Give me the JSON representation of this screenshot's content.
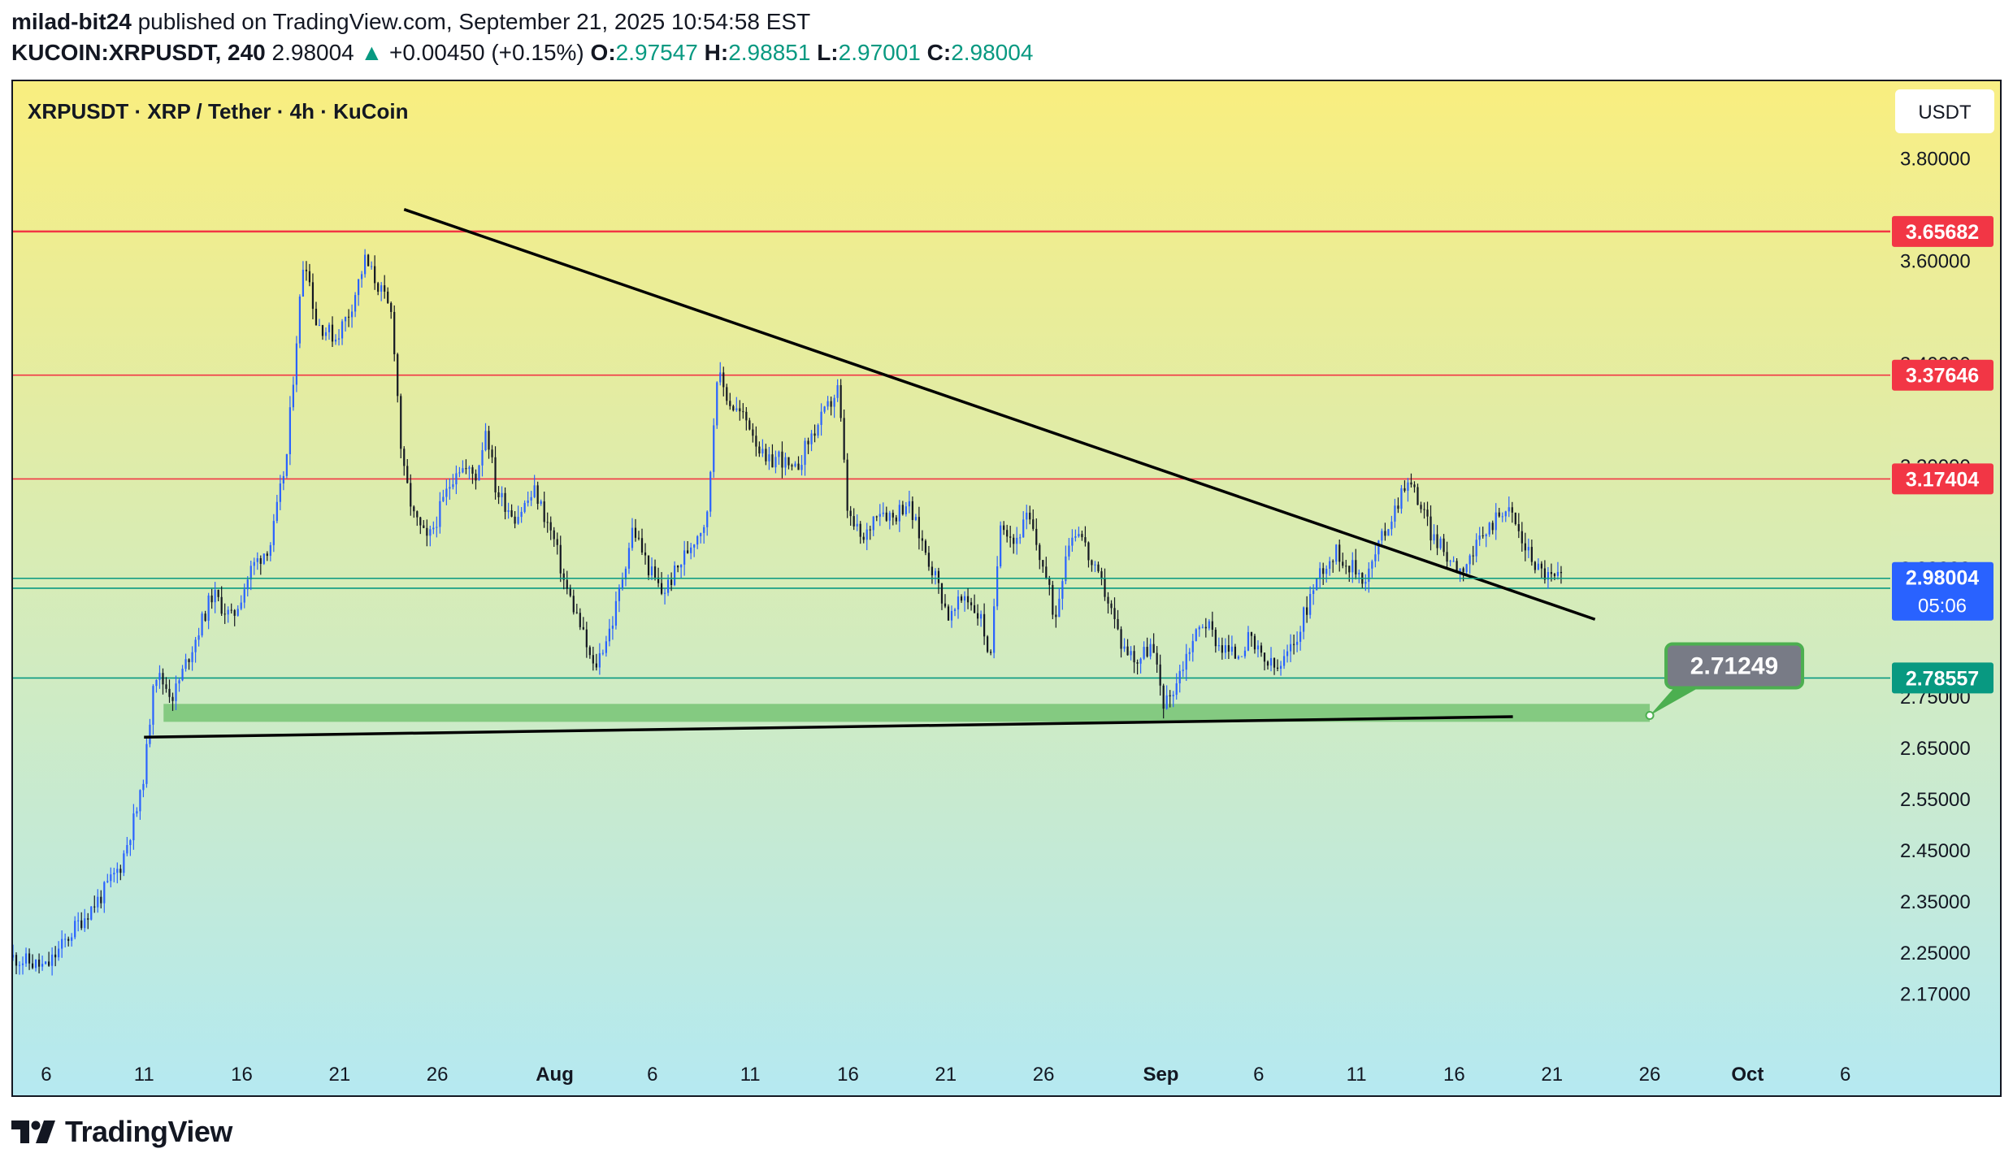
{
  "header": {
    "publisher": "milad-bit24",
    "published_text": " published on TradingView.com, September 21, 2025 10:54:58 EST",
    "symbol": "KUCOIN:XRPUSDT, 240",
    "last": "2.98004",
    "up_arrow": "▲",
    "change": "+0.00450 (+0.15%)",
    "o_label": "O:",
    "o_value": "2.97547",
    "h_label": "H:",
    "h_value": "2.98851",
    "l_label": "L:",
    "l_value": "2.97001",
    "c_label": "C:",
    "c_value": "2.98004"
  },
  "footer": {
    "brand": "TradingView",
    "logo_icon": "tradingview-logo-icon"
  },
  "colors": {
    "bg_top": "#f9ee7f",
    "bg_bottom": "#b3e9f1",
    "candle_up": "#2962ff",
    "candle_down": "#131722",
    "res_line": "#f23645",
    "sup_line": "#089981",
    "zone": "#5cb85c",
    "price_badge": "#2962ff",
    "sup_badge": "#089981",
    "callout_bg": "#787b86",
    "callout_border": "#4caf50"
  },
  "chart_data": {
    "type": "candlestick",
    "title": "XRPUSDT · XRP / Tether · 4h · KuCoin",
    "currency": "USDT",
    "timeframe": "4h",
    "x_tick_labels": [
      {
        "label": "6",
        "day": 0
      },
      {
        "label": "11",
        "day": 5
      },
      {
        "label": "16",
        "day": 10
      },
      {
        "label": "21",
        "day": 15
      },
      {
        "label": "26",
        "day": 20
      },
      {
        "label": "Aug",
        "day": 26,
        "bold": true
      },
      {
        "label": "6",
        "day": 31
      },
      {
        "label": "11",
        "day": 36
      },
      {
        "label": "16",
        "day": 41
      },
      {
        "label": "21",
        "day": 46
      },
      {
        "label": "26",
        "day": 51
      },
      {
        "label": "Sep",
        "day": 57,
        "bold": true
      },
      {
        "label": "6",
        "day": 62
      },
      {
        "label": "11",
        "day": 67
      },
      {
        "label": "16",
        "day": 72
      },
      {
        "label": "21",
        "day": 77
      },
      {
        "label": "26",
        "day": 82
      },
      {
        "label": "Oct",
        "day": 87,
        "bold": true
      },
      {
        "label": "6",
        "day": 92
      }
    ],
    "y_tick_labels": [
      "3.80000",
      "3.60000",
      "3.40000",
      "3.20000",
      "3.00000",
      "2.75000",
      "2.65000",
      "2.55000",
      "2.45000",
      "2.35000",
      "2.25000",
      "2.17000"
    ],
    "y_tick_values": [
      3.8,
      3.6,
      3.4,
      3.2,
      3.0,
      2.75,
      2.65,
      2.55,
      2.45,
      2.35,
      2.25,
      2.17
    ],
    "ylim": [
      2.06,
      3.95
    ],
    "xlim_days": [
      -1.7,
      94.3
    ],
    "price_path": [
      [
        -1.7,
        2.24
      ],
      [
        0.0,
        2.22
      ],
      [
        1.5,
        2.3
      ],
      [
        2.8,
        2.36
      ],
      [
        3.8,
        2.42
      ],
      [
        4.8,
        2.55
      ],
      [
        5.2,
        2.66
      ],
      [
        5.5,
        2.8
      ],
      [
        6.5,
        2.75
      ],
      [
        7.5,
        2.85
      ],
      [
        8.5,
        2.95
      ],
      [
        9.5,
        2.9
      ],
      [
        10.5,
        3.0
      ],
      [
        11.5,
        3.05
      ],
      [
        12.3,
        3.22
      ],
      [
        12.8,
        3.45
      ],
      [
        13.2,
        3.62
      ],
      [
        13.8,
        3.48
      ],
      [
        14.8,
        3.45
      ],
      [
        15.5,
        3.5
      ],
      [
        16.3,
        3.6
      ],
      [
        17.0,
        3.55
      ],
      [
        17.7,
        3.49
      ],
      [
        18.2,
        3.2
      ],
      [
        18.8,
        3.1
      ],
      [
        19.5,
        3.05
      ],
      [
        20.2,
        3.12
      ],
      [
        21.0,
        3.2
      ],
      [
        22.0,
        3.18
      ],
      [
        22.5,
        3.28
      ],
      [
        23.0,
        3.15
      ],
      [
        24.0,
        3.1
      ],
      [
        25.0,
        3.15
      ],
      [
        26.0,
        3.05
      ],
      [
        26.5,
        2.97
      ],
      [
        27.2,
        2.9
      ],
      [
        28.0,
        2.8
      ],
      [
        29.0,
        2.9
      ],
      [
        30.0,
        3.08
      ],
      [
        30.8,
        3.0
      ],
      [
        31.5,
        2.95
      ],
      [
        32.3,
        3.0
      ],
      [
        33.0,
        3.05
      ],
      [
        33.8,
        3.1
      ],
      [
        34.3,
        3.38
      ],
      [
        35.0,
        3.32
      ],
      [
        36.0,
        3.28
      ],
      [
        36.8,
        3.2
      ],
      [
        37.5,
        3.22
      ],
      [
        38.2,
        3.18
      ],
      [
        39.0,
        3.25
      ],
      [
        39.8,
        3.3
      ],
      [
        40.5,
        3.35
      ],
      [
        41.0,
        3.1
      ],
      [
        41.8,
        3.05
      ],
      [
        42.5,
        3.12
      ],
      [
        43.3,
        3.1
      ],
      [
        44.0,
        3.13
      ],
      [
        44.8,
        3.05
      ],
      [
        45.5,
        2.98
      ],
      [
        46.2,
        2.9
      ],
      [
        47.0,
        2.95
      ],
      [
        47.8,
        2.9
      ],
      [
        48.3,
        2.82
      ],
      [
        48.8,
        3.1
      ],
      [
        49.5,
        3.05
      ],
      [
        50.2,
        3.1
      ],
      [
        51.0,
        3.0
      ],
      [
        51.6,
        2.9
      ],
      [
        52.2,
        3.05
      ],
      [
        52.8,
        3.08
      ],
      [
        53.5,
        3.0
      ],
      [
        54.2,
        2.95
      ],
      [
        55.0,
        2.85
      ],
      [
        55.8,
        2.82
      ],
      [
        56.5,
        2.85
      ],
      [
        57.2,
        2.73
      ],
      [
        57.8,
        2.78
      ],
      [
        58.5,
        2.85
      ],
      [
        59.2,
        2.9
      ],
      [
        60.0,
        2.85
      ],
      [
        60.8,
        2.83
      ],
      [
        61.5,
        2.86
      ],
      [
        62.2,
        2.82
      ],
      [
        63.0,
        2.8
      ],
      [
        63.8,
        2.85
      ],
      [
        64.5,
        2.93
      ],
      [
        65.2,
        3.0
      ],
      [
        66.0,
        3.03
      ],
      [
        66.8,
        3.0
      ],
      [
        67.5,
        2.98
      ],
      [
        68.2,
        3.05
      ],
      [
        69.0,
        3.12
      ],
      [
        69.5,
        3.17
      ],
      [
        70.0,
        3.15
      ],
      [
        70.8,
        3.07
      ],
      [
        71.5,
        3.03
      ],
      [
        72.3,
        3.0
      ],
      [
        73.0,
        3.03
      ],
      [
        73.8,
        3.08
      ],
      [
        74.5,
        3.12
      ],
      [
        75.0,
        3.1
      ],
      [
        75.5,
        3.05
      ],
      [
        76.3,
        3.0
      ],
      [
        77.0,
        2.98
      ],
      [
        77.5,
        2.98
      ]
    ],
    "horizontal_levels": [
      {
        "value": 3.65682,
        "label": "3.65682",
        "kind": "resistance"
      },
      {
        "value": 3.37646,
        "label": "3.37646",
        "kind": "resistance"
      },
      {
        "value": 3.17404,
        "label": "3.17404",
        "kind": "resistance"
      },
      {
        "value": 2.96077,
        "label": "2.96077",
        "kind": "support"
      },
      {
        "value": 2.78557,
        "label": "2.78557",
        "kind": "support"
      }
    ],
    "current_price": {
      "label": "2.98004",
      "countdown": "05:06"
    },
    "trendlines": [
      {
        "name": "descending",
        "from": [
          18.3,
          3.7
        ],
        "to": [
          79.2,
          2.9
        ]
      },
      {
        "name": "ascending",
        "from": [
          5.0,
          2.67
        ],
        "to": [
          75.0,
          2.71
        ]
      }
    ],
    "support_zone": {
      "from_day": 6.0,
      "to_day": 82.0,
      "low": 2.7,
      "high": 2.735
    },
    "callout": {
      "label": "2.71249",
      "anchor_day": 82.0,
      "anchor_price": 2.71249
    }
  }
}
